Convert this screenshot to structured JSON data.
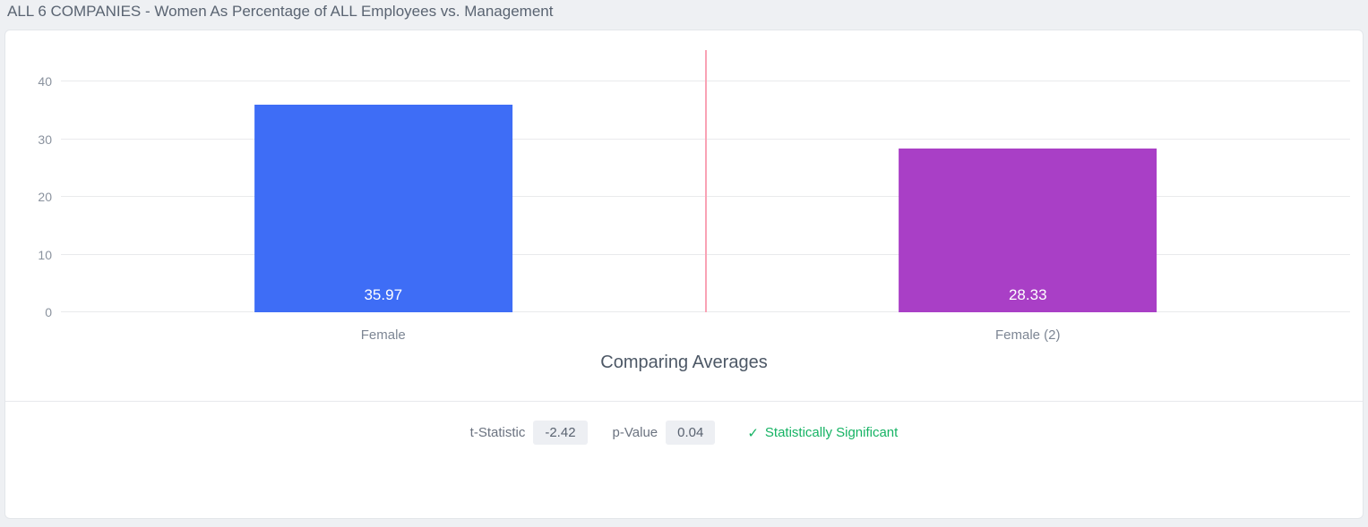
{
  "header": {
    "title": "ALL 6 COMPANIES - Women As Percentage of ALL Employees vs. Management"
  },
  "chart_data": {
    "type": "bar",
    "categories": [
      "Female",
      "Female (2)"
    ],
    "values": [
      35.97,
      28.33
    ],
    "value_labels": [
      "35.97",
      "28.33"
    ],
    "series": [
      {
        "name": "Female",
        "values": [
          35.97
        ]
      },
      {
        "name": "Female (2)",
        "values": [
          28.33
        ]
      }
    ],
    "title": "ALL 6 COMPANIES - Women As Percentage of ALL Employees vs. Management",
    "xlabel": "Comparing Averages",
    "ylabel": "",
    "ylim": [
      0,
      45
    ],
    "yticks": [
      0,
      10,
      20,
      30,
      40
    ],
    "grid": true,
    "legend": false,
    "bar_colors": [
      "#3e6df6",
      "#a93fc6"
    ],
    "divider_color": "#f9a3b5"
  },
  "stats": {
    "t_label": "t-Statistic",
    "t_value": "-2.42",
    "p_label": "p-Value",
    "p_value": "0.04",
    "check_icon": "✓",
    "significance_label": "Statistically Significant",
    "significance_color": "#16b364"
  }
}
